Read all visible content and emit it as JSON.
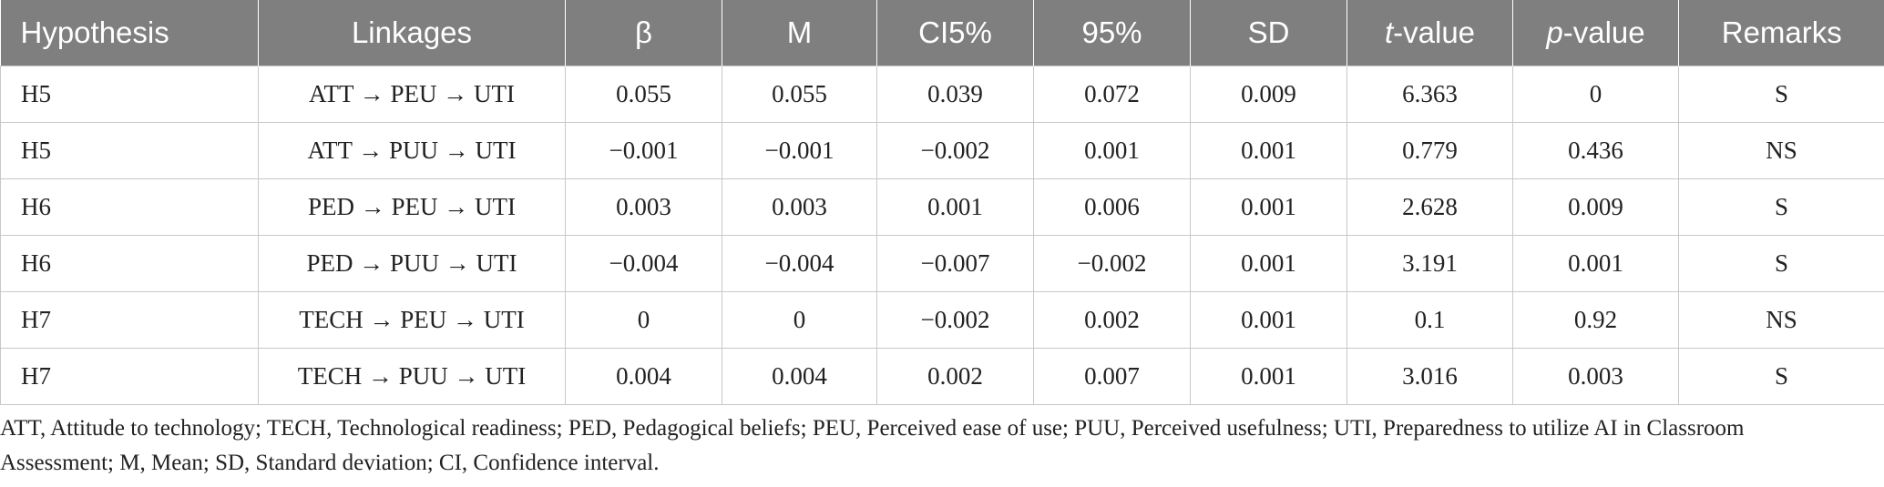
{
  "table": {
    "headers": [
      {
        "pre": "",
        "it": "",
        "post": "Hypothesis"
      },
      {
        "pre": "",
        "it": "",
        "post": "Linkages"
      },
      {
        "pre": "",
        "it": "",
        "post": "β"
      },
      {
        "pre": "",
        "it": "",
        "post": "M"
      },
      {
        "pre": "",
        "it": "",
        "post": "CI5%"
      },
      {
        "pre": "",
        "it": "",
        "post": "95%"
      },
      {
        "pre": "",
        "it": "",
        "post": "SD"
      },
      {
        "pre": "",
        "it": "t",
        "post": "-value"
      },
      {
        "pre": "",
        "it": "p",
        "post": "-value"
      },
      {
        "pre": "",
        "it": "",
        "post": "Remarks"
      }
    ],
    "rows": [
      [
        "H5",
        "ATT → PEU → UTI",
        "0.055",
        "0.055",
        "0.039",
        "0.072",
        "0.009",
        "6.363",
        "0",
        "S"
      ],
      [
        "H5",
        "ATT → PUU → UTI",
        "−0.001",
        "−0.001",
        "−0.002",
        "0.001",
        "0.001",
        "0.779",
        "0.436",
        "NS"
      ],
      [
        "H6",
        "PED → PEU → UTI",
        "0.003",
        "0.003",
        "0.001",
        "0.006",
        "0.001",
        "2.628",
        "0.009",
        "S"
      ],
      [
        "H6",
        "PED → PUU → UTI",
        "−0.004",
        "−0.004",
        "−0.007",
        "−0.002",
        "0.001",
        "3.191",
        "0.001",
        "S"
      ],
      [
        "H7",
        "TECH → PEU → UTI",
        "0",
        "0",
        "−0.002",
        "0.002",
        "0.001",
        "0.1",
        "0.92",
        "NS"
      ],
      [
        "H7",
        "TECH → PUU → UTI",
        "0.004",
        "0.004",
        "0.002",
        "0.007",
        "0.001",
        "3.016",
        "0.003",
        "S"
      ]
    ]
  },
  "footnote": "ATT, Attitude to technology; TECH, Technological readiness; PED, Pedagogical beliefs; PEU, Perceived ease of use; PUU, Perceived usefulness; UTI, Preparedness to utilize AI in Classroom Assessment; M, Mean; SD, Standard deviation; CI, Confidence interval."
}
